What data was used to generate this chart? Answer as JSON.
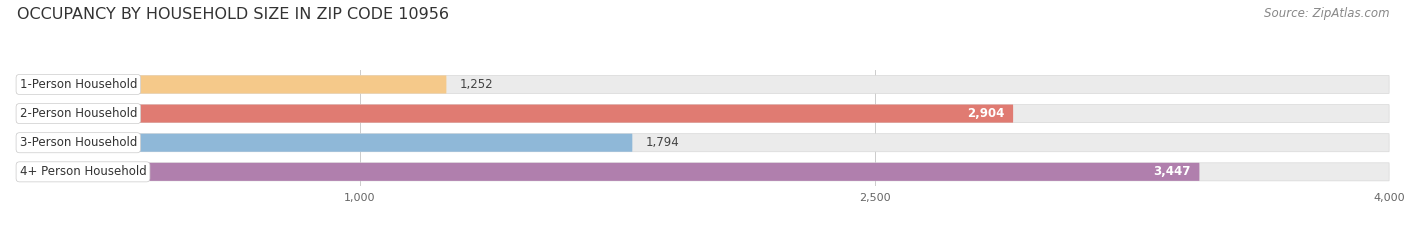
{
  "title": "OCCUPANCY BY HOUSEHOLD SIZE IN ZIP CODE 10956",
  "source": "Source: ZipAtlas.com",
  "categories": [
    "1-Person Household",
    "2-Person Household",
    "3-Person Household",
    "4+ Person Household"
  ],
  "values": [
    1252,
    2904,
    1794,
    3447
  ],
  "bar_colors": [
    "#f5c98a",
    "#e07b72",
    "#8fb8d8",
    "#b07fad"
  ],
  "label_colors": [
    "#555555",
    "#ffffff",
    "#555555",
    "#ffffff"
  ],
  "xlim": [
    0,
    4000
  ],
  "xticks": [
    1000,
    2500,
    4000
  ],
  "background_color": "#ffffff",
  "bar_background_color": "#ebebeb",
  "title_fontsize": 11.5,
  "source_fontsize": 8.5,
  "label_fontsize": 8.5,
  "value_fontsize": 8.5,
  "bar_height": 0.62
}
